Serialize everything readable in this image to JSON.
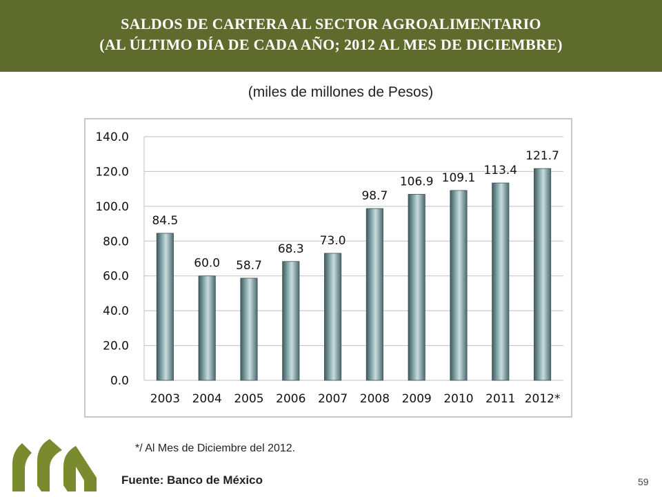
{
  "header": {
    "title_line1": "SALDOS DE CARTERA AL SECTOR AGROALIMENTARIO",
    "title_line2": "(AL ÚLTIMO DÍA DE CADA AÑO; 2012 AL MES DE DICIEMBRE)"
  },
  "subtitle": "(miles de millones de Pesos)",
  "footnote": "*/ Al Mes de Diciembre del 2012.",
  "source": "Fuente: Banco de México",
  "page_number": "59",
  "colors": {
    "header_bg": "#5e6b2c",
    "bar": "#6e8e92",
    "logo": "#7a8a2e"
  },
  "chart_data": {
    "type": "bar",
    "categories": [
      "2003",
      "2004",
      "2005",
      "2006",
      "2007",
      "2008",
      "2009",
      "2010",
      "2011",
      "2012*"
    ],
    "values": [
      84.5,
      60.0,
      58.7,
      68.3,
      73.0,
      98.7,
      106.9,
      109.1,
      113.4,
      121.7
    ],
    "value_labels": [
      "84.5",
      "60.0",
      "58.7",
      "68.3",
      "73.0",
      "98.7",
      "106.9",
      "109.1",
      "113.4",
      "121.7"
    ],
    "ylim": [
      0,
      140
    ],
    "yticks": [
      "0.0",
      "20.0",
      "40.0",
      "60.0",
      "80.0",
      "100.0",
      "120.0",
      "140.0"
    ],
    "grid": true,
    "legend": "none"
  }
}
